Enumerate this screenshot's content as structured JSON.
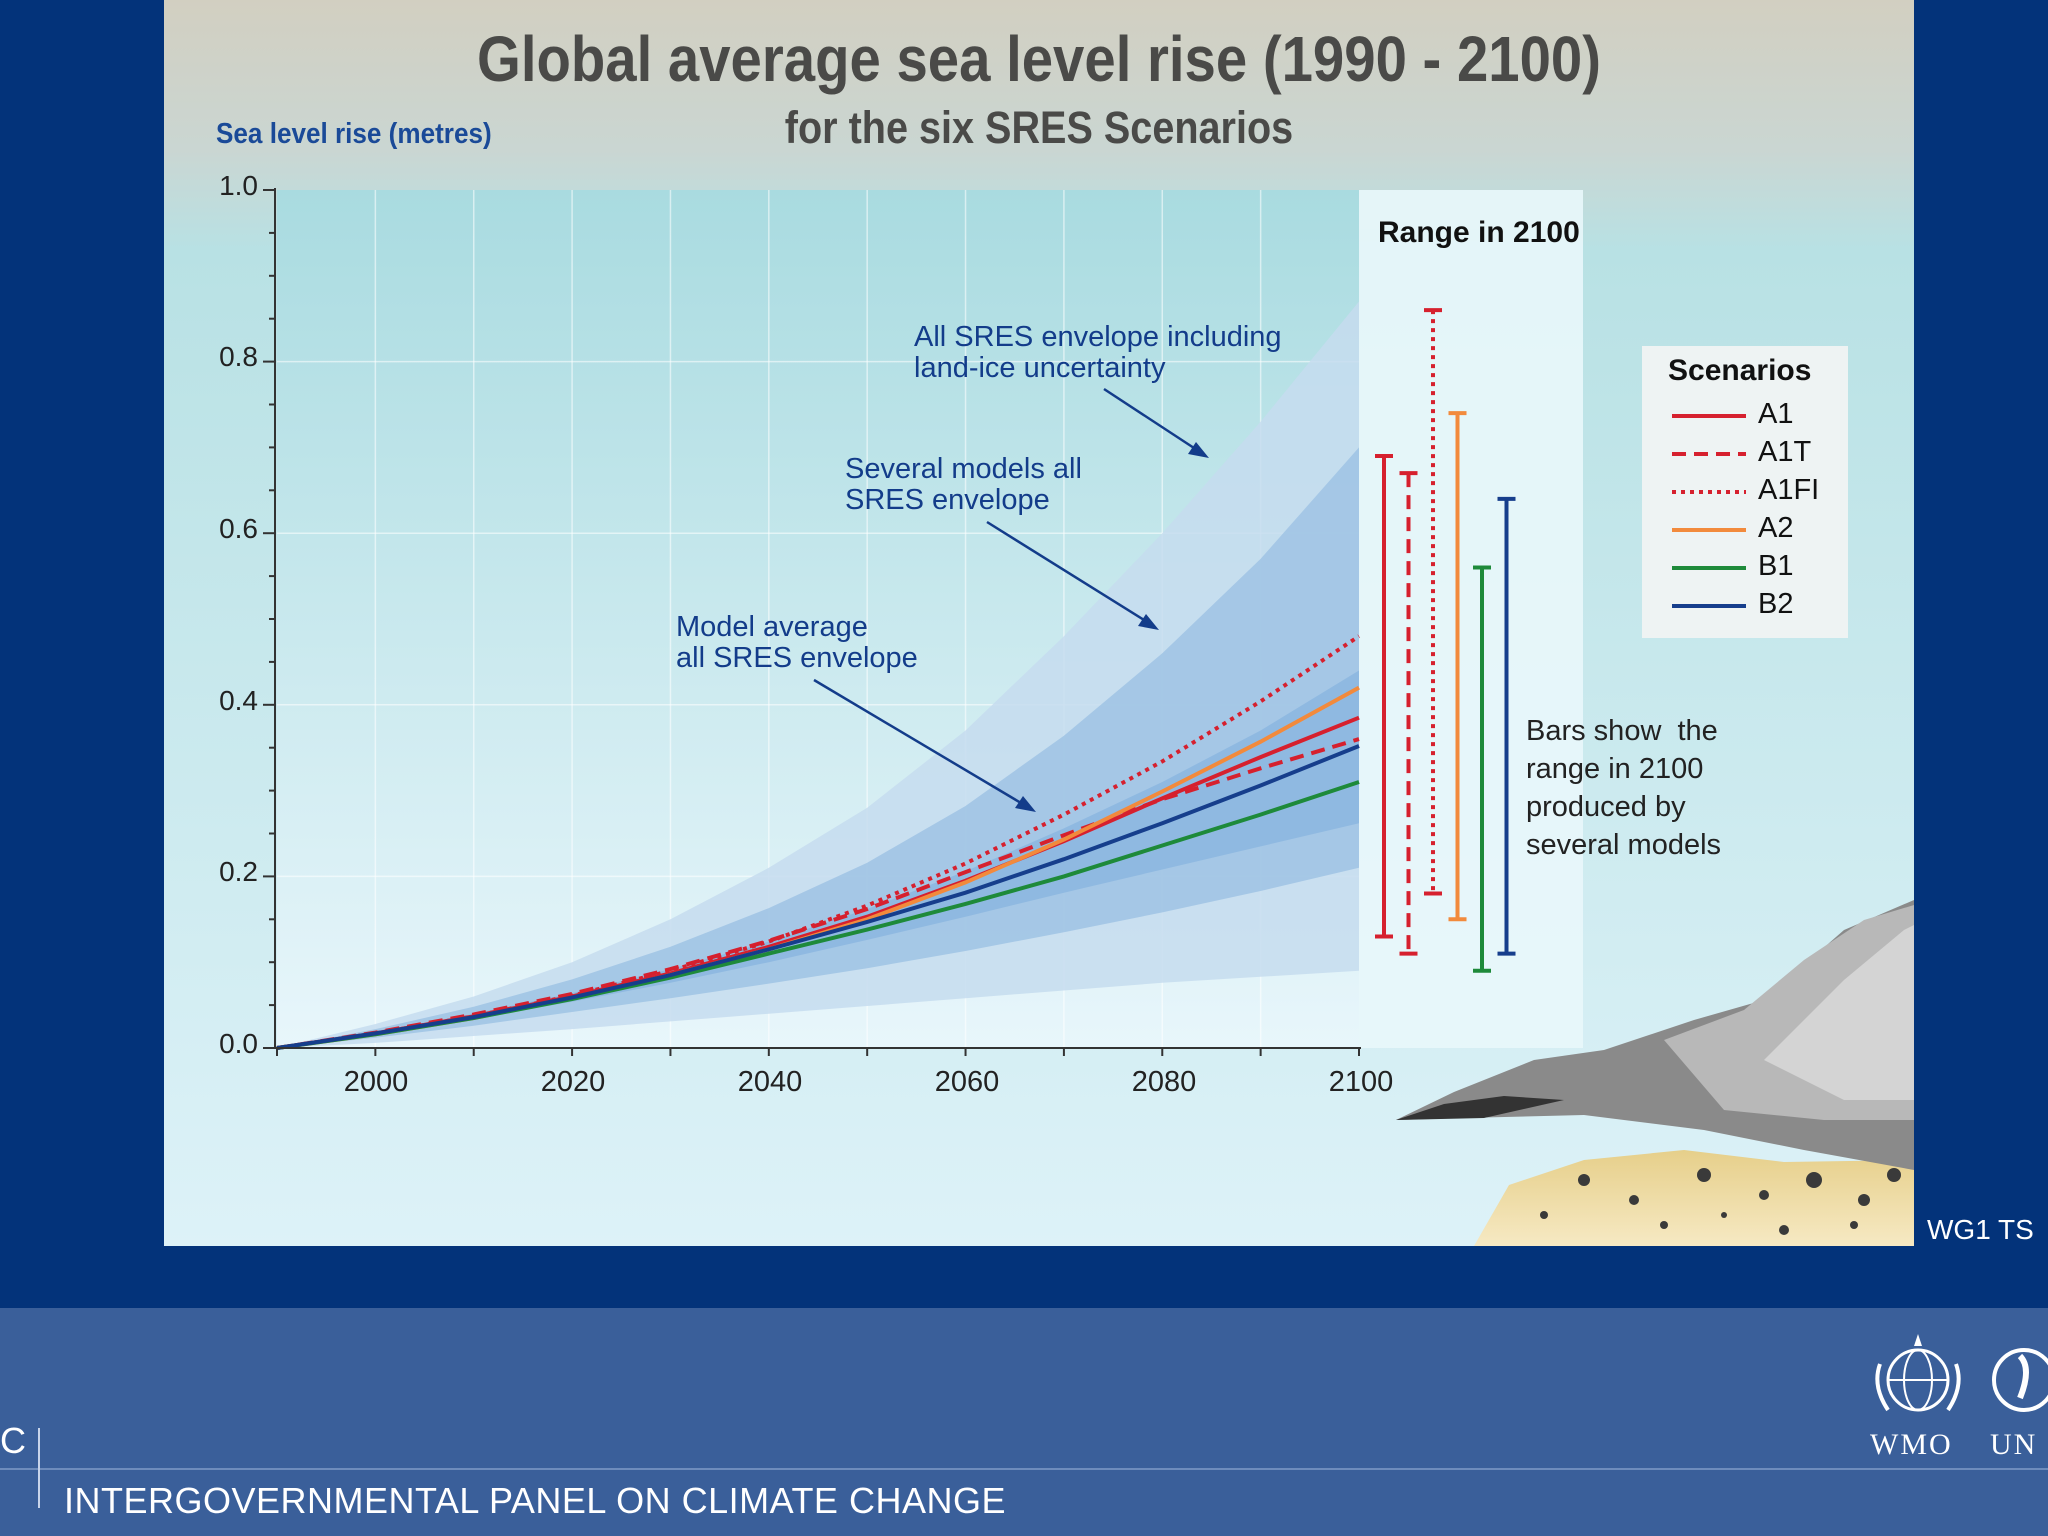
{
  "chart_data": {
    "type": "line",
    "title": "Global average sea level rise (1990 - 2100)",
    "subtitle": "for the six SRES Scenarios",
    "ylabel": "Sea level rise (metres)",
    "xlabel": "",
    "xlim": [
      1990,
      2100
    ],
    "ylim": [
      0,
      1.0
    ],
    "x_ticks": [
      "2000",
      "2020",
      "2040",
      "2060",
      "2080",
      "2100"
    ],
    "y_ticks": [
      "0.0",
      "0.2",
      "0.4",
      "0.6",
      "0.8",
      "1.0"
    ],
    "x": [
      1990,
      2000,
      2010,
      2020,
      2030,
      2040,
      2050,
      2060,
      2070,
      2080,
      2090,
      2100
    ],
    "envelopes": [
      {
        "upper": [
          0,
          0.028,
          0.06,
          0.1,
          0.15,
          0.21,
          0.28,
          0.37,
          0.48,
          0.6,
          0.73,
          0.87
        ],
        "lower": [
          0,
          0.006,
          0.014,
          0.022,
          0.031,
          0.04,
          0.049,
          0.058,
          0.067,
          0.076,
          0.083,
          0.09
        ],
        "color": "#c5dcef"
      },
      {
        "upper": [
          0,
          0.022,
          0.048,
          0.08,
          0.118,
          0.163,
          0.216,
          0.282,
          0.364,
          0.46,
          0.57,
          0.7
        ],
        "lower": [
          0,
          0.012,
          0.026,
          0.042,
          0.058,
          0.075,
          0.093,
          0.113,
          0.135,
          0.158,
          0.183,
          0.21
        ],
        "color": "#9fc3e4"
      },
      {
        "upper": [
          0,
          0.018,
          0.04,
          0.064,
          0.092,
          0.124,
          0.162,
          0.206,
          0.256,
          0.31,
          0.37,
          0.44
        ],
        "lower": [
          0,
          0.016,
          0.034,
          0.054,
          0.076,
          0.1,
          0.126,
          0.153,
          0.181,
          0.208,
          0.235,
          0.262
        ],
        "color": "#8bb6df"
      }
    ],
    "series": [
      {
        "name": "A1",
        "style": "solid",
        "color": "#d6202e",
        "values": [
          0,
          0.017,
          0.037,
          0.06,
          0.087,
          0.118,
          0.153,
          0.195,
          0.241,
          0.291,
          0.339,
          0.385
        ]
      },
      {
        "name": "A1T",
        "style": "dashed",
        "color": "#d6202e",
        "values": [
          0,
          0.018,
          0.039,
          0.063,
          0.092,
          0.125,
          0.162,
          0.205,
          0.248,
          0.29,
          0.326,
          0.36
        ]
      },
      {
        "name": "A1FI",
        "style": "dotted",
        "color": "#d6202e",
        "values": [
          0,
          0.017,
          0.037,
          0.061,
          0.09,
          0.124,
          0.166,
          0.215,
          0.272,
          0.334,
          0.404,
          0.48
        ]
      },
      {
        "name": "A2",
        "style": "solid",
        "color": "#f28a3c",
        "values": [
          0,
          0.016,
          0.035,
          0.058,
          0.085,
          0.115,
          0.15,
          0.193,
          0.243,
          0.299,
          0.357,
          0.42
        ]
      },
      {
        "name": "B1",
        "style": "solid",
        "color": "#1e8a3a",
        "values": [
          0,
          0.016,
          0.035,
          0.057,
          0.082,
          0.11,
          0.138,
          0.168,
          0.2,
          0.236,
          0.272,
          0.31
        ]
      },
      {
        "name": "B2",
        "style": "solid",
        "color": "#163e8c",
        "values": [
          0,
          0.017,
          0.036,
          0.059,
          0.085,
          0.115,
          0.147,
          0.181,
          0.22,
          0.262,
          0.306,
          0.352
        ]
      }
    ],
    "range_title": "Range in 2100",
    "range_bars": [
      {
        "name": "A1",
        "style": "solid",
        "color": "#d6202e",
        "min": 0.13,
        "max": 0.69
      },
      {
        "name": "A1T",
        "style": "dashed",
        "color": "#d6202e",
        "min": 0.11,
        "max": 0.67
      },
      {
        "name": "A1FI",
        "style": "dotted",
        "color": "#d6202e",
        "min": 0.18,
        "max": 0.86
      },
      {
        "name": "A2",
        "style": "solid",
        "color": "#f28a3c",
        "min": 0.15,
        "max": 0.74
      },
      {
        "name": "B1",
        "style": "solid",
        "color": "#1e8a3a",
        "min": 0.09,
        "max": 0.56
      },
      {
        "name": "B2",
        "style": "solid",
        "color": "#163e8c",
        "min": 0.11,
        "max": 0.64
      }
    ],
    "legend": {
      "title": "Scenarios",
      "position": "right",
      "items": [
        "A1",
        "A1T",
        "A1FI",
        "A2",
        "B1",
        "B2"
      ]
    },
    "annotations": [
      "All SRES envelope including\nland-ice uncertainty",
      "Several models all\nSRES envelope",
      "Model average\nall SRES envelope"
    ],
    "note": "Bars show  the\nrange in 2100\nproduced by\nseveral models",
    "grid": true
  },
  "slide": {
    "code": "WG1 TS"
  },
  "footer": {
    "org_partial": "C",
    "org_name": "INTERGOVERNMENTAL PANEL ON CLIMATE CHANGE",
    "logo_wmo": "WMO",
    "logo_unep": "UN"
  },
  "colors": {
    "background": "#03337a",
    "footer": "#3a5f9a",
    "title_text": "#4a4a48",
    "annotation": "#133c8a"
  },
  "icons": [
    "wmo-emblem-icon",
    "unep-emblem-icon",
    "annotation-arrow-icon"
  ]
}
